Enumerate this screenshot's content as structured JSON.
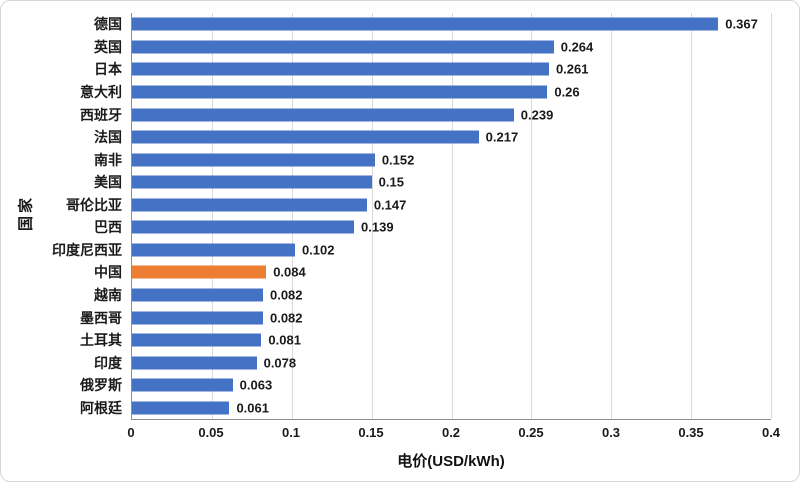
{
  "chart_data": {
    "type": "bar",
    "orientation": "horizontal",
    "categories": [
      "德国",
      "英国",
      "日本",
      "意大利",
      "西班牙",
      "法国",
      "南非",
      "美国",
      "哥伦比亚",
      "巴西",
      "印度尼西亚",
      "中国",
      "越南",
      "墨西哥",
      "土耳其",
      "印度",
      "俄罗斯",
      "阿根廷"
    ],
    "values": [
      0.367,
      0.264,
      0.261,
      0.26,
      0.239,
      0.217,
      0.152,
      0.15,
      0.147,
      0.139,
      0.102,
      0.084,
      0.082,
      0.082,
      0.081,
      0.078,
      0.063,
      0.061
    ],
    "value_labels": [
      "0.367",
      "0.264",
      "0.261",
      "0.26",
      "0.239",
      "0.217",
      "0.152",
      "0.15",
      "0.147",
      "0.139",
      "0.102",
      "0.084",
      "0.082",
      "0.082",
      "0.081",
      "0.078",
      "0.063",
      "0.061"
    ],
    "title": "",
    "xlabel": "电价(USD/kWh)",
    "ylabel": "国家",
    "xlim": [
      0,
      0.4
    ],
    "xticks": [
      0,
      0.05,
      0.1,
      0.15,
      0.2,
      0.25,
      0.3,
      0.35,
      0.4
    ],
    "xtick_labels": [
      "0",
      "0.05",
      "0.1",
      "0.15",
      "0.2",
      "0.25",
      "0.3",
      "0.35",
      "0.4"
    ],
    "grid": true,
    "legend": "none",
    "bar_color": "#4472C4",
    "highlight_category": "中国",
    "highlight_color": "#ED7D31"
  }
}
